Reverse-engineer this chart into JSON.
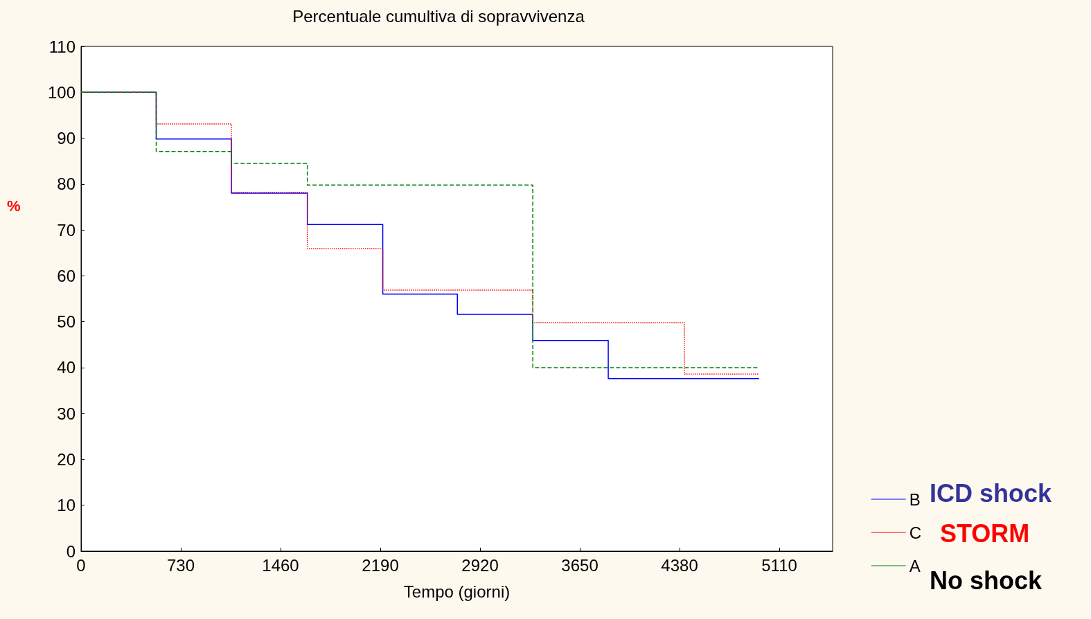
{
  "chart_data": {
    "type": "step",
    "title": "Percentuale cumultiva di sopravvivenza",
    "xlabel": "Tempo (giorni)",
    "ylabel": "%",
    "xlim": [
      0,
      5500
    ],
    "xticks": [
      0,
      730,
      1460,
      2190,
      2920,
      3650,
      4380,
      5110
    ],
    "ylim": [
      0,
      110
    ],
    "yticks": [
      0,
      10,
      20,
      30,
      40,
      50,
      60,
      70,
      80,
      90,
      100,
      110
    ],
    "grid": false,
    "legend": "bottom right",
    "marker": "none",
    "series": [
      {
        "name": "B",
        "color": "#0000ff",
        "line_style": "solid",
        "x": [
          0,
          550,
          1100,
          1656,
          2208,
          2754,
          3306,
          3858,
          4962
        ],
        "values": [
          100,
          89.8,
          78,
          71.2,
          56,
          51.6,
          45.9,
          37.6,
          37.6
        ]
      },
      {
        "name": "C",
        "color": "#ff0000",
        "line_style": "dotted",
        "x": [
          0,
          550,
          1100,
          1656,
          2208,
          3306,
          4415,
          4962
        ],
        "values": [
          100,
          93.1,
          78.2,
          65.9,
          56.9,
          49.8,
          38.6,
          38.6
        ]
      },
      {
        "name": "A",
        "color": "#008000",
        "line_style": "dashed",
        "x": [
          0,
          550,
          1100,
          1656,
          3306,
          4962
        ],
        "values": [
          100,
          87.1,
          84.5,
          79.8,
          40,
          40
        ]
      }
    ],
    "annotations": [
      "ICD shock",
      "STORM",
      "No shock"
    ]
  }
}
